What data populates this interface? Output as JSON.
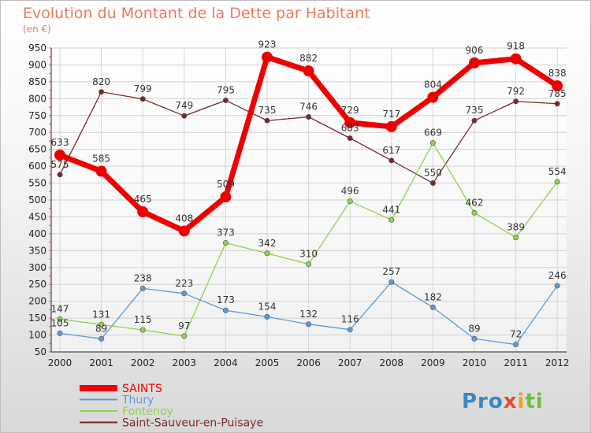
{
  "chart_data": {
    "type": "line",
    "title": "Evolution du Montant de la Dette par Habitant",
    "subtitle": "(en €)",
    "x": [
      "2000",
      "2001",
      "2002",
      "2003",
      "2004",
      "2005",
      "2006",
      "2007",
      "2008",
      "2009",
      "2010",
      "2011",
      "2012"
    ],
    "ylim": [
      50,
      950
    ],
    "yticks": [
      50,
      100,
      150,
      200,
      250,
      300,
      350,
      400,
      450,
      500,
      550,
      600,
      650,
      700,
      750,
      800,
      850,
      900,
      950
    ],
    "grid": true,
    "legend_position": "bottom-left",
    "series": [
      {
        "name": "SAINTS",
        "color": "#ee0000",
        "values": [
          633,
          585,
          465,
          408,
          509,
          923,
          882,
          729,
          717,
          804,
          906,
          918,
          838
        ]
      },
      {
        "name": "Thury",
        "color": "#5b9bd5",
        "values": [
          105,
          89,
          238,
          223,
          173,
          154,
          132,
          116,
          257,
          182,
          89,
          72,
          246
        ]
      },
      {
        "name": "Fontenoy",
        "color": "#8fd24c",
        "values": [
          147,
          131,
          115,
          97,
          373,
          342,
          310,
          496,
          441,
          669,
          462,
          389,
          554
        ]
      },
      {
        "name": "Saint-Sauveur-en-Puisaye",
        "color": "#7a2a2a",
        "values": [
          575,
          820,
          799,
          749,
          795,
          735,
          746,
          683,
          617,
          550,
          735,
          792,
          785
        ]
      }
    ]
  },
  "logo": {
    "text": "Proxiti"
  }
}
